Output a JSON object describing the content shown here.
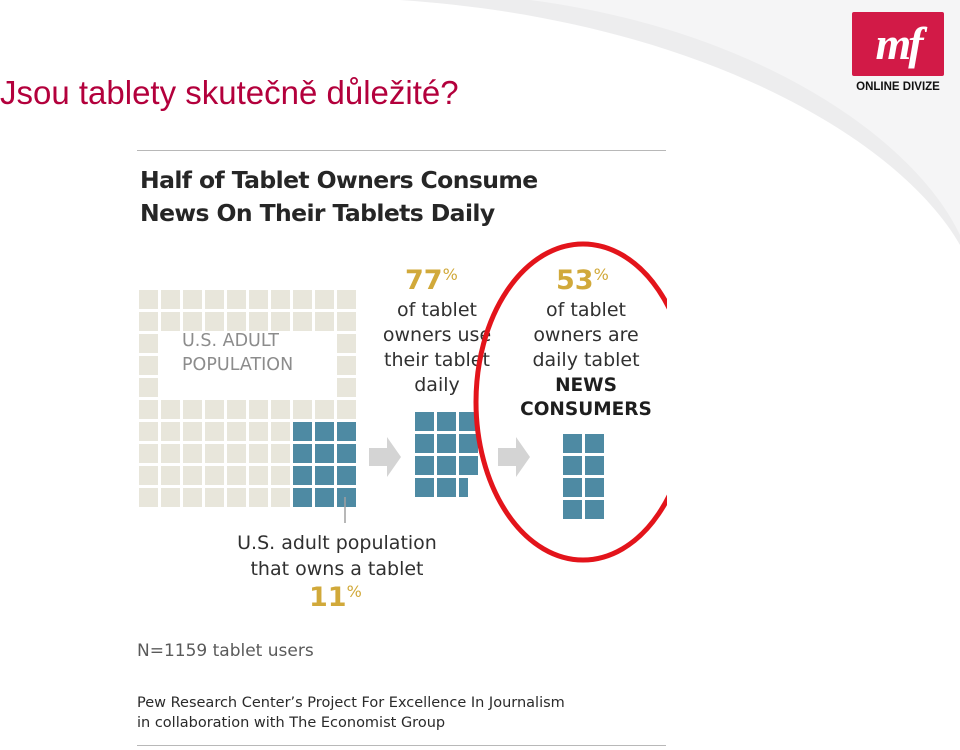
{
  "slide": {
    "title": "Jsou tablety skutečně důležité?"
  },
  "logo": {
    "mark": "mf",
    "caption": "ONLINE DIVIZE"
  },
  "infographic": {
    "title_line1": "Half of Tablet Owners Consume",
    "title_line2": "News On Their Tablets Daily",
    "population_label_line1": "U.S. ADULT",
    "population_label_line2": "POPULATION",
    "use_daily": {
      "percent": "77",
      "percent_sign": "%",
      "line1": "of tablet",
      "line2": "owners use",
      "line3": "their tablet",
      "line4": "daily"
    },
    "news_daily": {
      "percent": "53",
      "percent_sign": "%",
      "line1": "of tablet",
      "line2": "owners are",
      "line3": "daily tablet",
      "line4": "NEWS",
      "line5": "CONSUMERS"
    },
    "owns_tablet": {
      "line1": "U.S. adult population",
      "line2": "that owns a tablet",
      "percent": "11",
      "percent_sign": "%"
    },
    "sample_note": "N=1159 tablet users",
    "credit_line1": "Pew Research Center’s Project For Excellence In Journalism",
    "credit_line2": "in collaboration with The Economist Group",
    "colors": {
      "population_square": "#e8e6db",
      "tablet_square": "#4e8aa3",
      "highlight_ring": "#e3141b",
      "percent_gold": "#d1a93a",
      "arrow": "#d4d4d4"
    }
  }
}
